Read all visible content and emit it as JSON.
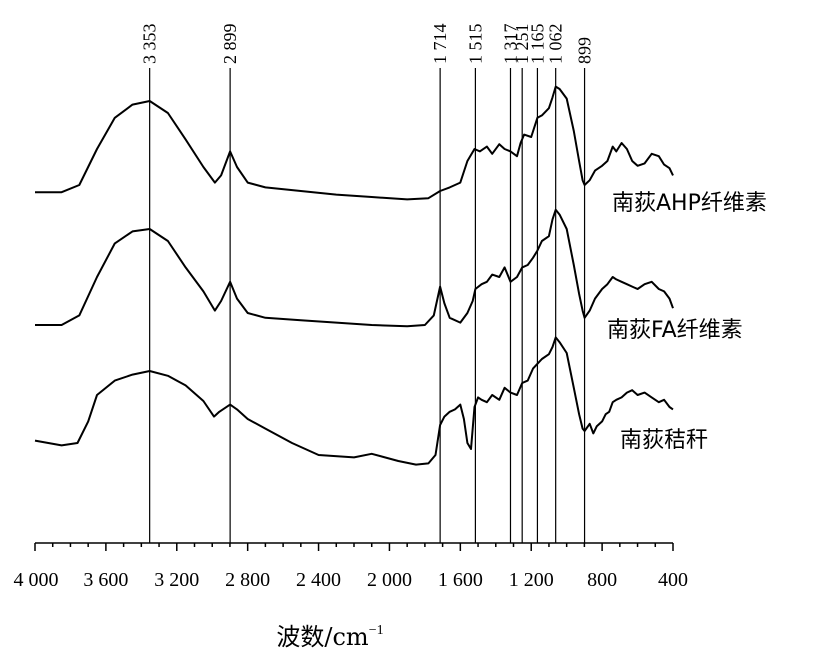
{
  "chart_data": {
    "type": "line",
    "xlabel": "波数/cm",
    "xlabel_sup": "−1",
    "xlim": [
      4000,
      400
    ],
    "x_ticks": [
      4000,
      3600,
      3200,
      2800,
      2400,
      2000,
      1600,
      1200,
      800,
      400
    ],
    "x_tick_labels": [
      "4 000",
      "3 600",
      "3 200",
      "2 800",
      "2 400",
      "2 000",
      "1 600",
      "1 200",
      "800",
      "400"
    ],
    "peak_lines": [
      {
        "x": 3353,
        "label": "3 353"
      },
      {
        "x": 2899,
        "label": "2 899"
      },
      {
        "x": 1714,
        "label": "1 714"
      },
      {
        "x": 1515,
        "label": "1 515"
      },
      {
        "x": 1317,
        "label": "1 317"
      },
      {
        "x": 1251,
        "label": "1 251"
      },
      {
        "x": 1165,
        "label": "1 165"
      },
      {
        "x": 1062,
        "label": "1 062"
      },
      {
        "x": 899,
        "label": "899"
      }
    ],
    "series": [
      {
        "name": "南荻AHP纤维素",
        "color": "#000000",
        "points": [
          [
            4000,
            0.04
          ],
          [
            3850,
            0.04
          ],
          [
            3750,
            0.1
          ],
          [
            3650,
            0.4
          ],
          [
            3550,
            0.66
          ],
          [
            3450,
            0.77
          ],
          [
            3353,
            0.8
          ],
          [
            3250,
            0.7
          ],
          [
            3150,
            0.48
          ],
          [
            3050,
            0.25
          ],
          [
            2985,
            0.12
          ],
          [
            2950,
            0.18
          ],
          [
            2899,
            0.38
          ],
          [
            2860,
            0.25
          ],
          [
            2800,
            0.12
          ],
          [
            2700,
            0.08
          ],
          [
            2500,
            0.05
          ],
          [
            2300,
            0.02
          ],
          [
            2100,
            0.0
          ],
          [
            1900,
            -0.02
          ],
          [
            1780,
            -0.01
          ],
          [
            1714,
            0.05
          ],
          [
            1660,
            0.08
          ],
          [
            1600,
            0.12
          ],
          [
            1560,
            0.3
          ],
          [
            1520,
            0.4
          ],
          [
            1490,
            0.38
          ],
          [
            1450,
            0.42
          ],
          [
            1420,
            0.36
          ],
          [
            1380,
            0.44
          ],
          [
            1350,
            0.4
          ],
          [
            1317,
            0.38
          ],
          [
            1280,
            0.34
          ],
          [
            1260,
            0.45
          ],
          [
            1240,
            0.52
          ],
          [
            1200,
            0.5
          ],
          [
            1165,
            0.66
          ],
          [
            1140,
            0.68
          ],
          [
            1100,
            0.74
          ],
          [
            1080,
            0.83
          ],
          [
            1062,
            0.92
          ],
          [
            1040,
            0.9
          ],
          [
            1000,
            0.82
          ],
          [
            960,
            0.55
          ],
          [
            930,
            0.3
          ],
          [
            910,
            0.14
          ],
          [
            899,
            0.1
          ],
          [
            870,
            0.14
          ],
          [
            840,
            0.22
          ],
          [
            800,
            0.26
          ],
          [
            770,
            0.3
          ],
          [
            740,
            0.42
          ],
          [
            720,
            0.38
          ],
          [
            690,
            0.45
          ],
          [
            660,
            0.4
          ],
          [
            630,
            0.3
          ],
          [
            600,
            0.26
          ],
          [
            560,
            0.28
          ],
          [
            520,
            0.36
          ],
          [
            480,
            0.34
          ],
          [
            450,
            0.27
          ],
          [
            420,
            0.24
          ],
          [
            400,
            0.18
          ]
        ]
      },
      {
        "name": "南荻FA纤维素",
        "color": "#000000",
        "points": [
          [
            4000,
            0.0
          ],
          [
            3850,
            0.0
          ],
          [
            3750,
            0.08
          ],
          [
            3650,
            0.4
          ],
          [
            3550,
            0.68
          ],
          [
            3450,
            0.78
          ],
          [
            3353,
            0.8
          ],
          [
            3250,
            0.7
          ],
          [
            3150,
            0.48
          ],
          [
            3050,
            0.28
          ],
          [
            2985,
            0.12
          ],
          [
            2950,
            0.2
          ],
          [
            2899,
            0.36
          ],
          [
            2860,
            0.22
          ],
          [
            2800,
            0.1
          ],
          [
            2700,
            0.06
          ],
          [
            2500,
            0.04
          ],
          [
            2300,
            0.02
          ],
          [
            2100,
            0.0
          ],
          [
            1900,
            -0.01
          ],
          [
            1800,
            0.0
          ],
          [
            1750,
            0.08
          ],
          [
            1714,
            0.32
          ],
          [
            1690,
            0.18
          ],
          [
            1660,
            0.06
          ],
          [
            1600,
            0.02
          ],
          [
            1560,
            0.1
          ],
          [
            1530,
            0.2
          ],
          [
            1515,
            0.3
          ],
          [
            1480,
            0.34
          ],
          [
            1450,
            0.36
          ],
          [
            1420,
            0.42
          ],
          [
            1380,
            0.4
          ],
          [
            1350,
            0.48
          ],
          [
            1317,
            0.36
          ],
          [
            1280,
            0.4
          ],
          [
            1251,
            0.48
          ],
          [
            1220,
            0.5
          ],
          [
            1190,
            0.56
          ],
          [
            1165,
            0.62
          ],
          [
            1140,
            0.7
          ],
          [
            1100,
            0.74
          ],
          [
            1080,
            0.88
          ],
          [
            1062,
            0.96
          ],
          [
            1040,
            0.92
          ],
          [
            1000,
            0.8
          ],
          [
            960,
            0.5
          ],
          [
            930,
            0.26
          ],
          [
            910,
            0.12
          ],
          [
            899,
            0.06
          ],
          [
            870,
            0.12
          ],
          [
            840,
            0.22
          ],
          [
            800,
            0.3
          ],
          [
            770,
            0.34
          ],
          [
            740,
            0.4
          ],
          [
            720,
            0.38
          ],
          [
            690,
            0.36
          ],
          [
            660,
            0.34
          ],
          [
            630,
            0.32
          ],
          [
            600,
            0.3
          ],
          [
            560,
            0.34
          ],
          [
            520,
            0.36
          ],
          [
            480,
            0.3
          ],
          [
            450,
            0.28
          ],
          [
            420,
            0.22
          ],
          [
            400,
            0.14
          ]
        ]
      },
      {
        "name": "南荻秸秆",
        "color": "#000000",
        "points": [
          [
            4000,
            0.12
          ],
          [
            3850,
            0.08
          ],
          [
            3760,
            0.1
          ],
          [
            3700,
            0.28
          ],
          [
            3650,
            0.5
          ],
          [
            3550,
            0.62
          ],
          [
            3450,
            0.67
          ],
          [
            3353,
            0.7
          ],
          [
            3250,
            0.66
          ],
          [
            3150,
            0.58
          ],
          [
            3050,
            0.45
          ],
          [
            2990,
            0.32
          ],
          [
            2960,
            0.36
          ],
          [
            2899,
            0.42
          ],
          [
            2860,
            0.38
          ],
          [
            2800,
            0.3
          ],
          [
            2700,
            0.22
          ],
          [
            2550,
            0.1
          ],
          [
            2400,
            0.0
          ],
          [
            2200,
            -0.02
          ],
          [
            2100,
            0.01
          ],
          [
            1950,
            -0.05
          ],
          [
            1850,
            -0.08
          ],
          [
            1780,
            -0.07
          ],
          [
            1740,
            0.0
          ],
          [
            1714,
            0.25
          ],
          [
            1690,
            0.32
          ],
          [
            1660,
            0.36
          ],
          [
            1630,
            0.38
          ],
          [
            1600,
            0.42
          ],
          [
            1580,
            0.3
          ],
          [
            1560,
            0.1
          ],
          [
            1540,
            0.05
          ],
          [
            1520,
            0.4
          ],
          [
            1500,
            0.48
          ],
          [
            1480,
            0.46
          ],
          [
            1450,
            0.44
          ],
          [
            1420,
            0.5
          ],
          [
            1380,
            0.46
          ],
          [
            1350,
            0.56
          ],
          [
            1317,
            0.52
          ],
          [
            1280,
            0.5
          ],
          [
            1251,
            0.6
          ],
          [
            1220,
            0.62
          ],
          [
            1190,
            0.72
          ],
          [
            1165,
            0.76
          ],
          [
            1140,
            0.8
          ],
          [
            1100,
            0.84
          ],
          [
            1080,
            0.9
          ],
          [
            1062,
            0.98
          ],
          [
            1040,
            0.94
          ],
          [
            1000,
            0.85
          ],
          [
            960,
            0.56
          ],
          [
            930,
            0.34
          ],
          [
            910,
            0.22
          ],
          [
            899,
            0.2
          ],
          [
            870,
            0.26
          ],
          [
            850,
            0.18
          ],
          [
            830,
            0.24
          ],
          [
            800,
            0.28
          ],
          [
            780,
            0.34
          ],
          [
            760,
            0.36
          ],
          [
            740,
            0.44
          ],
          [
            720,
            0.46
          ],
          [
            690,
            0.48
          ],
          [
            660,
            0.52
          ],
          [
            630,
            0.54
          ],
          [
            600,
            0.5
          ],
          [
            560,
            0.52
          ],
          [
            520,
            0.48
          ],
          [
            480,
            0.44
          ],
          [
            450,
            0.46
          ],
          [
            420,
            0.4
          ],
          [
            400,
            0.38
          ]
        ]
      }
    ]
  }
}
